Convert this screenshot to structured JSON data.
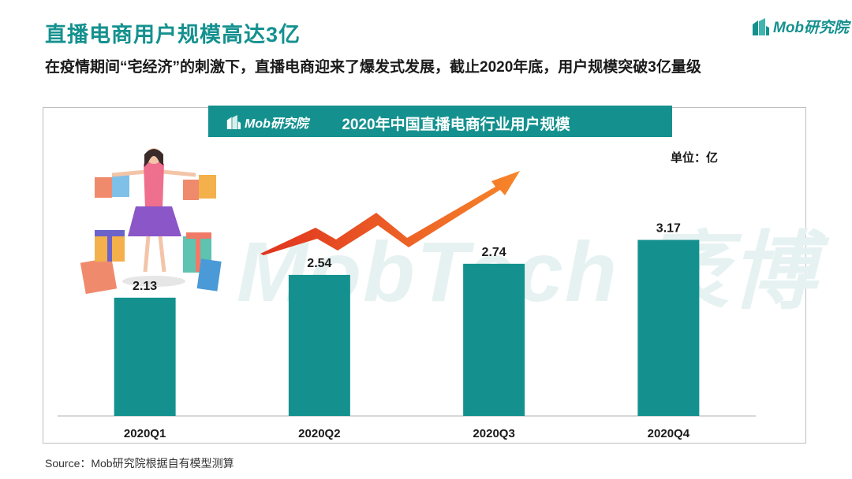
{
  "header": {
    "title": "直播电商用户规模高达3亿",
    "subtitle": "在疫情期间“宅经济”的刺激下，直播电商迎来了爆发式发展，截止2020年底，用户规模突破3亿量级",
    "brand": "Mob研究院"
  },
  "chart_panel": {
    "banner_brand": "Mob研究院",
    "unit": "单位：亿",
    "watermark": "MobTech 袤博"
  },
  "chart_data": {
    "type": "bar",
    "title": "2020年中国直播电商行业用户规模",
    "categories": [
      "2020Q1",
      "2020Q2",
      "2020Q3",
      "2020Q4"
    ],
    "values": [
      2.13,
      2.54,
      2.74,
      3.17
    ],
    "ylim": [
      0,
      3.5
    ],
    "grid": false,
    "bar_color": "#14918f"
  },
  "footer": {
    "source": "Source：Mob研究院根据自有模型测算"
  },
  "colors": {
    "accent": "#14918f",
    "arrow_start": "#e0331f",
    "arrow_end": "#f7862a"
  }
}
